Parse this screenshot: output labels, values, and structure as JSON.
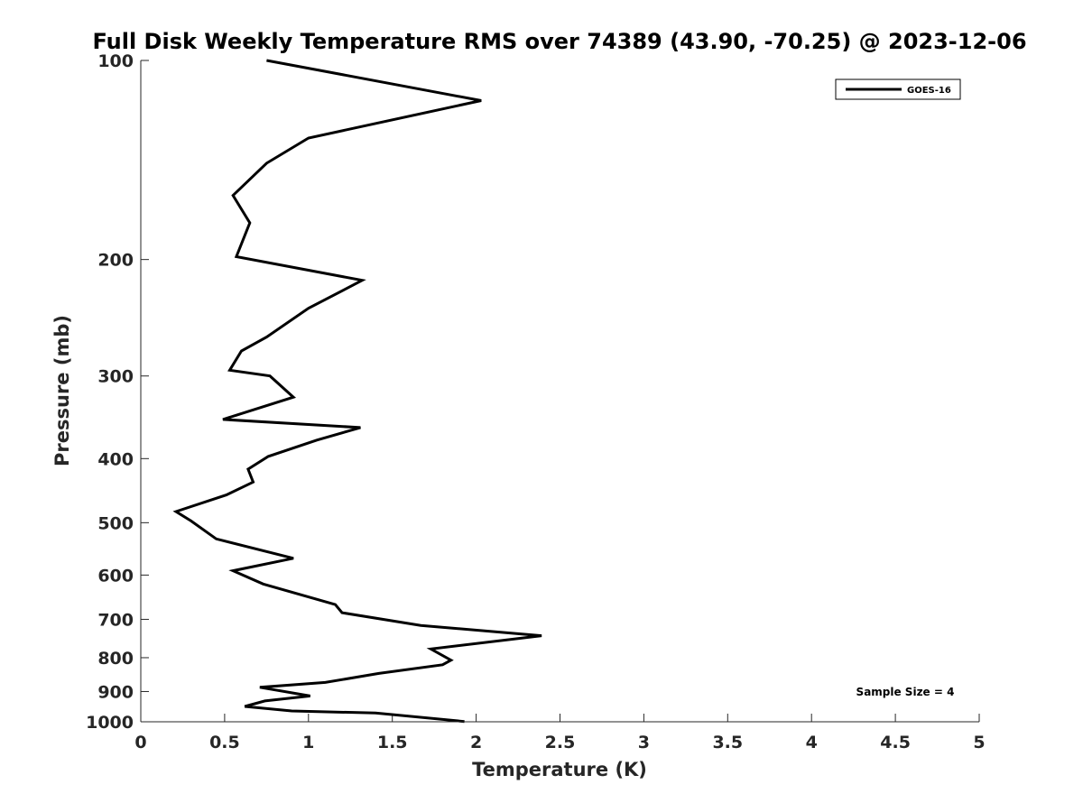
{
  "chart_data": {
    "type": "line",
    "title": "Full Disk Weekly Temperature RMS over 74389 (43.90, -70.25) @ 2023-12-06",
    "xlabel": "Temperature (K)",
    "ylabel": "Pressure (mb)",
    "xlim": [
      0,
      5
    ],
    "ylim": [
      100,
      1000
    ],
    "yscale": "log",
    "y_reversed": true,
    "grid": false,
    "legend_position": "top-right",
    "x_ticks": [
      "0",
      "0.5",
      "1",
      "1.5",
      "2",
      "2.5",
      "3",
      "3.5",
      "4",
      "4.5",
      "5"
    ],
    "y_ticks": [
      "100",
      "200",
      "300",
      "400",
      "500",
      "600",
      "700",
      "800",
      "900",
      "1000"
    ],
    "series": [
      {
        "name": "GOES-16",
        "color": "#000000",
        "x": [
          0.75,
          2.03,
          1.0,
          0.75,
          0.55,
          0.65,
          0.57,
          1.32,
          1.0,
          0.75,
          0.6,
          0.53,
          0.77,
          0.91,
          0.49,
          1.31,
          1.05,
          0.76,
          0.64,
          0.67,
          0.51,
          0.21,
          0.3,
          0.45,
          0.91,
          0.55,
          0.73,
          1.16,
          1.2,
          1.67,
          2.39,
          1.73,
          1.85,
          1.8,
          1.42,
          1.1,
          0.71,
          1.01,
          0.74,
          0.62,
          0.9,
          1.4,
          1.93
        ],
        "y": [
          100,
          115,
          131,
          143,
          160,
          176,
          198,
          215,
          237,
          262,
          275,
          294,
          300,
          323,
          349,
          359,
          375,
          397,
          415,
          434,
          454,
          481,
          497,
          529,
          566,
          591,
          619,
          665,
          684,
          715,
          741,
          776,
          807,
          820,
          845,
          872,
          887,
          914,
          930,
          948,
          963,
          970,
          999
        ]
      }
    ],
    "annotations": [
      "Sample Size = 4"
    ]
  }
}
